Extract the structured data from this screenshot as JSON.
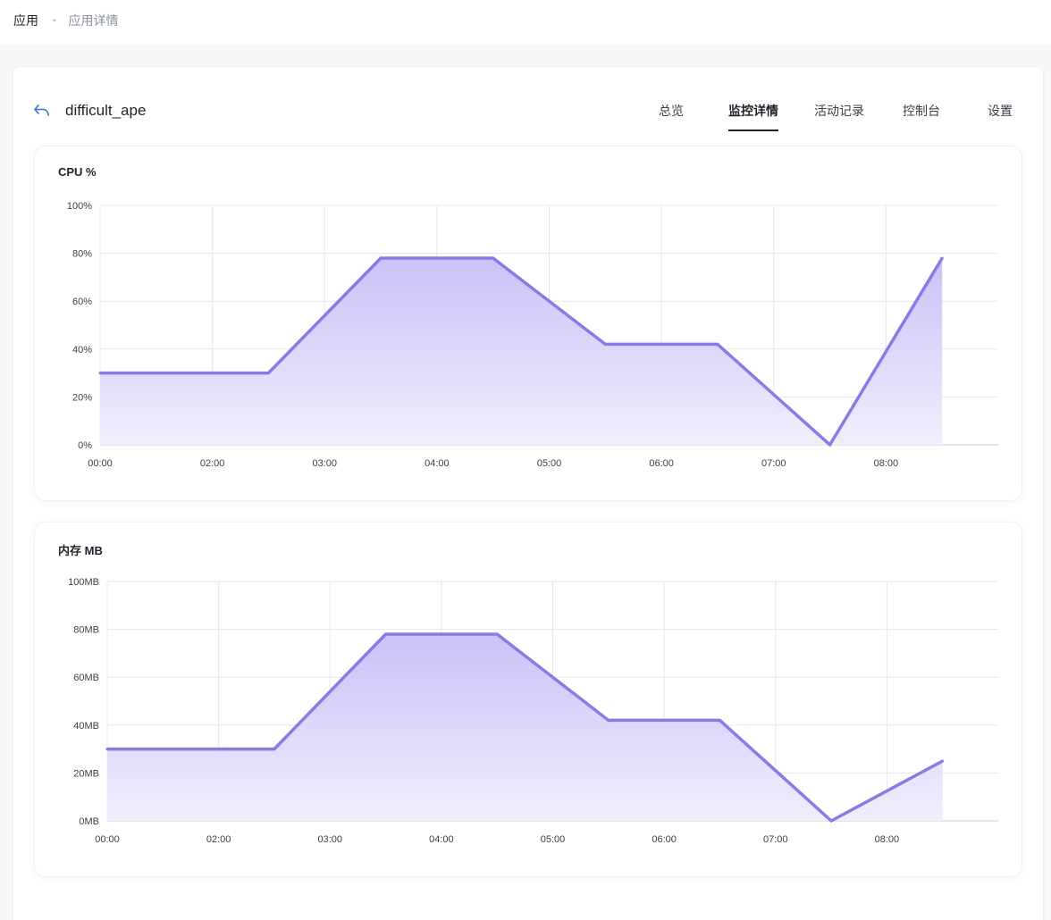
{
  "breadcrumb": {
    "root": "应用",
    "separator": "•",
    "current": "应用详情"
  },
  "header": {
    "back_icon": "arrow-back-icon",
    "app_name": "difficult_ape",
    "tabs": [
      {
        "label": "总览",
        "active": false
      },
      {
        "label": "监控详情",
        "active": true
      },
      {
        "label": "活动记录",
        "active": false
      },
      {
        "label": "控制台",
        "active": false
      },
      {
        "label": "设置",
        "active": false
      }
    ]
  },
  "colors": {
    "line": "#8a7ae6",
    "fill_top": "#c9c2f7",
    "fill_bottom": "#f1eefd",
    "grid": "#e6e7eb"
  },
  "chart_data": [
    {
      "type": "area",
      "title": "CPU %",
      "x": [
        "00:00",
        "02:00",
        "03:00",
        "04:00",
        "05:00",
        "06:00",
        "07:00",
        "08:00"
      ],
      "points": [
        {
          "x": 0,
          "y": 30
        },
        {
          "x": 1.5,
          "y": 30
        },
        {
          "x": 2.5,
          "y": 78
        },
        {
          "x": 3.5,
          "y": 78
        },
        {
          "x": 4.5,
          "y": 42
        },
        {
          "x": 5.5,
          "y": 42
        },
        {
          "x": 6.5,
          "y": 0
        },
        {
          "x": 7.5,
          "y": 78
        }
      ],
      "y_ticks": [
        "0%",
        "20%",
        "40%",
        "60%",
        "80%",
        "100%"
      ],
      "ylim": [
        0,
        100
      ],
      "grid": true
    },
    {
      "type": "area",
      "title": "内存 MB",
      "x": [
        "00:00",
        "02:00",
        "03:00",
        "04:00",
        "05:00",
        "06:00",
        "07:00",
        "08:00"
      ],
      "points": [
        {
          "x": 0,
          "y": 30
        },
        {
          "x": 1.5,
          "y": 30
        },
        {
          "x": 2.5,
          "y": 78
        },
        {
          "x": 3.5,
          "y": 78
        },
        {
          "x": 4.5,
          "y": 42
        },
        {
          "x": 5.5,
          "y": 42
        },
        {
          "x": 6.5,
          "y": 0
        },
        {
          "x": 7.5,
          "y": 25
        }
      ],
      "y_ticks": [
        "0MB",
        "20MB",
        "40MB",
        "60MB",
        "80MB",
        "100MB"
      ],
      "ylim": [
        0,
        100
      ],
      "grid": true
    }
  ]
}
